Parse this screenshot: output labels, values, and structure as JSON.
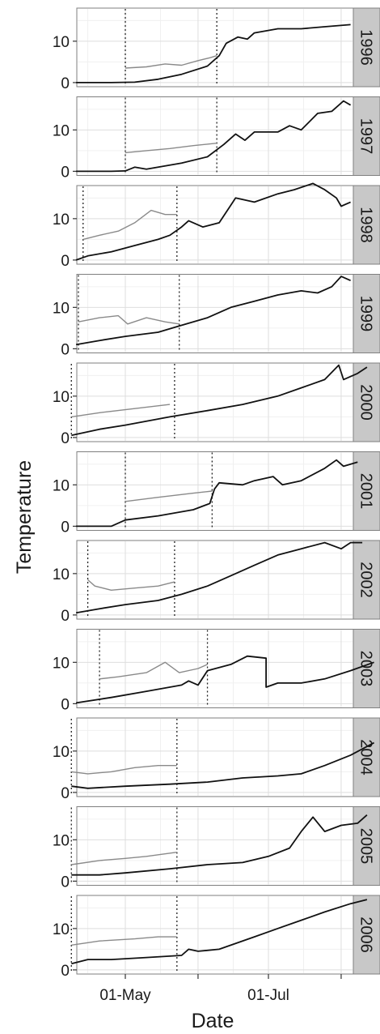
{
  "chart_data": {
    "type": "line",
    "title": "",
    "xlabel": "Date",
    "ylabel": "Temperature",
    "x_ticks": [
      "01-May",
      "01-Jul"
    ],
    "y_ticks": [
      0,
      10
    ],
    "y_range": [
      -1,
      18
    ],
    "x_range": [
      "2000-04-01",
      "2000-08-01"
    ],
    "grid": true,
    "facets": [
      {
        "label": "1996",
        "main": [
          [
            "04-10",
            0
          ],
          [
            "04-25",
            0
          ],
          [
            "05-05",
            0.1
          ],
          [
            "05-15",
            0.8
          ],
          [
            "05-25",
            2
          ],
          [
            "06-05",
            4
          ],
          [
            "06-10",
            6.5
          ],
          [
            "06-13",
            9.5
          ],
          [
            "06-18",
            11
          ],
          [
            "06-22",
            10.5
          ],
          [
            "06-25",
            12
          ],
          [
            "07-05",
            13
          ],
          [
            "07-15",
            13
          ],
          [
            "07-25",
            13.5
          ],
          [
            "08-05",
            14
          ]
        ],
        "grey": [
          [
            "05-01",
            3.5
          ],
          [
            "05-10",
            3.8
          ],
          [
            "05-18",
            4.5
          ],
          [
            "05-25",
            4.2
          ],
          [
            "06-01",
            5.3
          ],
          [
            "06-06",
            6
          ],
          [
            "06-09",
            6.5
          ]
        ],
        "vlines": [
          "05-01",
          "06-09"
        ]
      },
      {
        "label": "1997",
        "main": [
          [
            "04-10",
            0
          ],
          [
            "04-25",
            0
          ],
          [
            "05-01",
            0.1
          ],
          [
            "05-05",
            1
          ],
          [
            "05-10",
            0.5
          ],
          [
            "05-25",
            2
          ],
          [
            "06-05",
            3.5
          ],
          [
            "06-12",
            6.5
          ],
          [
            "06-17",
            9
          ],
          [
            "06-21",
            7.5
          ],
          [
            "06-25",
            9.5
          ],
          [
            "07-05",
            9.5
          ],
          [
            "07-10",
            11
          ],
          [
            "07-15",
            10
          ],
          [
            "07-22",
            14
          ],
          [
            "07-28",
            14.5
          ],
          [
            "08-02",
            17
          ],
          [
            "08-05",
            16
          ]
        ],
        "grey": [
          [
            "05-01",
            4.5
          ],
          [
            "05-10",
            5
          ],
          [
            "05-20",
            5.5
          ],
          [
            "05-30",
            6.2
          ],
          [
            "06-09",
            6.8
          ]
        ],
        "vlines": [
          "05-01",
          "06-09"
        ]
      },
      {
        "label": "1998",
        "main": [
          [
            "04-10",
            0
          ],
          [
            "04-15",
            1
          ],
          [
            "04-25",
            2
          ],
          [
            "05-05",
            3.5
          ],
          [
            "05-15",
            5
          ],
          [
            "05-20",
            6
          ],
          [
            "05-25",
            8
          ],
          [
            "05-28",
            9.5
          ],
          [
            "06-03",
            8
          ],
          [
            "06-10",
            9
          ],
          [
            "06-17",
            15
          ],
          [
            "06-25",
            14
          ],
          [
            "07-05",
            16
          ],
          [
            "07-12",
            17
          ],
          [
            "07-20",
            18.5
          ],
          [
            "07-25",
            17
          ],
          [
            "07-30",
            15
          ],
          [
            "08-01",
            13
          ],
          [
            "08-05",
            14
          ]
        ],
        "grey": [
          [
            "04-13",
            5
          ],
          [
            "04-20",
            6
          ],
          [
            "04-28",
            7
          ],
          [
            "05-05",
            9
          ],
          [
            "05-12",
            12
          ],
          [
            "05-18",
            11
          ],
          [
            "05-23",
            11
          ]
        ],
        "vlines": [
          "04-13",
          "05-23"
        ]
      },
      {
        "label": "1999",
        "main": [
          [
            "04-10",
            1
          ],
          [
            "04-20",
            2
          ],
          [
            "05-01",
            3
          ],
          [
            "05-15",
            4
          ],
          [
            "05-24",
            5.5
          ],
          [
            "06-05",
            7.5
          ],
          [
            "06-15",
            10
          ],
          [
            "06-25",
            11.5
          ],
          [
            "07-05",
            13
          ],
          [
            "07-15",
            14
          ],
          [
            "07-22",
            13.5
          ],
          [
            "07-28",
            15
          ],
          [
            "08-01",
            17.5
          ],
          [
            "08-05",
            16.5
          ]
        ],
        "grey": [
          [
            "04-11",
            6.5
          ],
          [
            "04-20",
            7.5
          ],
          [
            "04-28",
            8
          ],
          [
            "05-02",
            6
          ],
          [
            "05-10",
            7.5
          ],
          [
            "05-18",
            6.5
          ],
          [
            "05-24",
            6
          ]
        ],
        "vlines": [
          "04-11",
          "05-24"
        ]
      },
      {
        "label": "2000",
        "main": [
          [
            "04-08",
            0.5
          ],
          [
            "04-20",
            2
          ],
          [
            "05-01",
            3
          ],
          [
            "05-20",
            5
          ],
          [
            "06-05",
            6.5
          ],
          [
            "06-20",
            8
          ],
          [
            "07-05",
            10
          ],
          [
            "07-15",
            12
          ],
          [
            "07-25",
            14
          ],
          [
            "07-31",
            17.5
          ],
          [
            "08-02",
            14
          ],
          [
            "08-08",
            15.5
          ],
          [
            "08-12",
            17
          ]
        ],
        "grey": [
          [
            "04-08",
            5
          ],
          [
            "04-20",
            6
          ],
          [
            "05-05",
            7
          ],
          [
            "05-20",
            8
          ]
        ],
        "vlines": [
          "04-08",
          "05-22"
        ]
      },
      {
        "label": "2001",
        "main": [
          [
            "04-10",
            0
          ],
          [
            "04-25",
            0
          ],
          [
            "05-01",
            1.5
          ],
          [
            "05-15",
            2.5
          ],
          [
            "05-30",
            4
          ],
          [
            "06-06",
            5.5
          ],
          [
            "06-08",
            9
          ],
          [
            "06-10",
            10.5
          ],
          [
            "06-20",
            10
          ],
          [
            "06-25",
            11
          ],
          [
            "07-03",
            12
          ],
          [
            "07-07",
            10
          ],
          [
            "07-15",
            11
          ],
          [
            "07-25",
            14
          ],
          [
            "07-30",
            16
          ],
          [
            "08-02",
            14.5
          ],
          [
            "08-08",
            15.5
          ]
        ],
        "grey": [
          [
            "05-01",
            6
          ],
          [
            "05-15",
            7
          ],
          [
            "05-30",
            8
          ],
          [
            "06-07",
            8.5
          ]
        ],
        "vlines": [
          "05-01",
          "06-07"
        ]
      },
      {
        "label": "2002",
        "main": [
          [
            "04-10",
            0.5
          ],
          [
            "04-20",
            1.5
          ],
          [
            "05-01",
            2.5
          ],
          [
            "05-15",
            3.5
          ],
          [
            "05-25",
            5
          ],
          [
            "06-05",
            7
          ],
          [
            "06-15",
            9.5
          ],
          [
            "06-25",
            12
          ],
          [
            "07-05",
            14.5
          ],
          [
            "07-15",
            16
          ],
          [
            "07-25",
            17.5
          ],
          [
            "08-01",
            16
          ],
          [
            "08-05",
            17.5
          ],
          [
            "08-10",
            17.5
          ]
        ],
        "grey": [
          [
            "04-15",
            8.5
          ],
          [
            "04-18",
            7
          ],
          [
            "04-25",
            6
          ],
          [
            "05-05",
            6.5
          ],
          [
            "05-15",
            7
          ],
          [
            "05-22",
            8
          ]
        ],
        "vlines": [
          "04-15",
          "05-22"
        ]
      },
      {
        "label": "2003",
        "main": [
          [
            "04-10",
            0.2
          ],
          [
            "04-25",
            1.5
          ],
          [
            "05-10",
            3
          ],
          [
            "05-25",
            4.5
          ],
          [
            "05-28",
            5.5
          ],
          [
            "06-01",
            4.5
          ],
          [
            "06-05",
            8
          ],
          [
            "06-15",
            9.5
          ],
          [
            "06-22",
            11.5
          ],
          [
            "06-30",
            11
          ],
          [
            "06-30",
            4
          ],
          [
            "07-05",
            5
          ],
          [
            "07-15",
            5
          ],
          [
            "07-25",
            6
          ],
          [
            "08-05",
            8
          ],
          [
            "08-15",
            10
          ]
        ],
        "grey": [
          [
            "04-20",
            6
          ],
          [
            "04-28",
            6.5
          ],
          [
            "05-10",
            7.5
          ],
          [
            "05-18",
            10
          ],
          [
            "05-24",
            7.5
          ],
          [
            "06-01",
            8.5
          ],
          [
            "06-05",
            9.5
          ]
        ],
        "vlines": [
          "04-20",
          "06-05"
        ]
      },
      {
        "label": "2004",
        "main": [
          [
            "04-08",
            1.5
          ],
          [
            "04-15",
            1
          ],
          [
            "05-01",
            1.5
          ],
          [
            "05-20",
            2
          ],
          [
            "06-05",
            2.5
          ],
          [
            "06-20",
            3.5
          ],
          [
            "07-05",
            4
          ],
          [
            "07-15",
            4.5
          ],
          [
            "07-25",
            6.5
          ],
          [
            "08-05",
            9
          ],
          [
            "08-15",
            12
          ]
        ],
        "grey": [
          [
            "04-08",
            5
          ],
          [
            "04-15",
            4.5
          ],
          [
            "04-25",
            5
          ],
          [
            "05-05",
            6
          ],
          [
            "05-15",
            6.5
          ],
          [
            "05-23",
            6.5
          ]
        ],
        "vlines": [
          "04-08",
          "05-23"
        ]
      },
      {
        "label": "2005",
        "main": [
          [
            "04-08",
            1.5
          ],
          [
            "04-20",
            1.5
          ],
          [
            "05-01",
            2
          ],
          [
            "05-20",
            3
          ],
          [
            "06-05",
            4
          ],
          [
            "06-20",
            4.5
          ],
          [
            "07-01",
            6
          ],
          [
            "07-10",
            8
          ],
          [
            "07-15",
            12
          ],
          [
            "07-20",
            15.5
          ],
          [
            "07-25",
            12
          ],
          [
            "08-01",
            13.5
          ],
          [
            "08-08",
            14
          ],
          [
            "08-12",
            16
          ]
        ],
        "grey": [
          [
            "04-08",
            4
          ],
          [
            "04-20",
            5
          ],
          [
            "05-01",
            5.5
          ],
          [
            "05-10",
            6
          ],
          [
            "05-23",
            7
          ]
        ],
        "vlines": [
          "04-08",
          "05-23"
        ]
      },
      {
        "label": "2006",
        "main": [
          [
            "04-08",
            1.5
          ],
          [
            "04-15",
            2.5
          ],
          [
            "04-25",
            2.5
          ],
          [
            "05-10",
            3
          ],
          [
            "05-25",
            3.5
          ],
          [
            "05-28",
            5
          ],
          [
            "06-01",
            4.5
          ],
          [
            "06-10",
            5
          ],
          [
            "06-25",
            8
          ],
          [
            "07-05",
            10
          ],
          [
            "07-15",
            12
          ],
          [
            "07-25",
            14
          ],
          [
            "08-05",
            16
          ],
          [
            "08-12",
            17
          ]
        ],
        "grey": [
          [
            "04-08",
            6
          ],
          [
            "04-20",
            7
          ],
          [
            "05-05",
            7.5
          ],
          [
            "05-15",
            8
          ],
          [
            "05-23",
            8
          ]
        ],
        "vlines": [
          "04-08",
          "05-23"
        ]
      }
    ]
  }
}
